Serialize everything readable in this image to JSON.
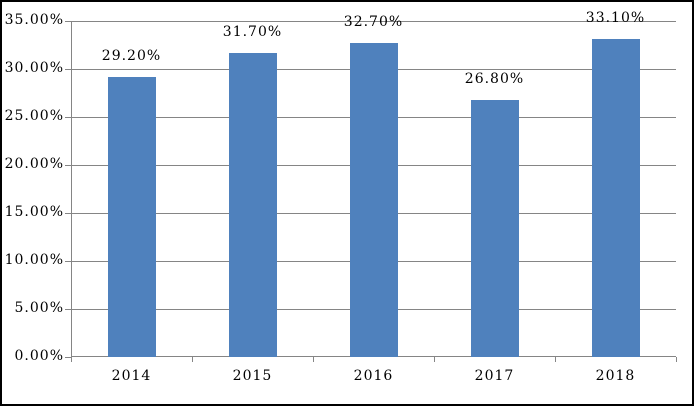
{
  "window": {
    "background": "#FFFFFF",
    "border_color": "#000000"
  },
  "chart_data": {
    "type": "bar",
    "title": "",
    "xlabel": "",
    "ylabel": "",
    "categories": [
      "2014",
      "2015",
      "2016",
      "2017",
      "2018"
    ],
    "series": [
      {
        "name": "",
        "values": [
          29.2,
          31.7,
          32.7,
          26.8,
          33.1
        ],
        "data_labels": [
          "29.20%",
          "31.70%",
          "32.70%",
          "26.80%",
          "33.10%"
        ]
      }
    ],
    "ylim": [
      0,
      35
    ],
    "y_step": 5,
    "y_tick_labels": [
      "0.00%",
      "5.00%",
      "10.00%",
      "15.00%",
      "20.00%",
      "25.00%",
      "30.00%",
      "35.00%"
    ],
    "grid": true,
    "legend_position": "none",
    "bar_color": "#4F81BD",
    "gridline_color": "#858585",
    "axis_color": "#858585",
    "label_color": "#000000"
  }
}
